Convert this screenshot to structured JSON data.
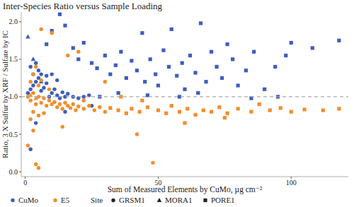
{
  "chart_data": {
    "type": "scatter",
    "title": "Inter-Species Ratio versus Sample Loading",
    "x_label": "Sum of Measured Elements by CuMo, µg cm⁻²",
    "y_label": "Ratio, 3 X Sulfur by XRF / Sulfate by IC",
    "xlim": [
      -1.5,
      121.5
    ],
    "ylim": [
      -0.065,
      2.13
    ],
    "xticks": [
      0,
      50,
      100
    ],
    "yticks": [
      {
        "value": 0,
        "label": "0.0"
      },
      {
        "value": 0.5,
        "label": "0.5"
      },
      {
        "value": 1,
        "label": "1.0"
      },
      {
        "value": 1.5,
        "label": "1.5"
      },
      {
        "value": 2,
        "label": "2.0"
      }
    ],
    "reference_line": 1,
    "grid": false,
    "legend": "bottom",
    "legend_title": "Site",
    "sites": [
      {
        "name": "GRSM1",
        "marker": "circle"
      },
      {
        "name": "MORA1",
        "marker": "triangle"
      },
      {
        "name": "PORE1",
        "marker": "square"
      }
    ],
    "series": [
      {
        "name": "CuMo",
        "color": "#3d5dbd",
        "marker": "circle",
        "x": [
          1,
          2,
          3,
          4,
          5,
          6,
          7,
          8,
          9,
          10,
          11,
          12,
          13,
          14,
          15,
          16,
          18,
          20,
          22,
          24,
          3,
          5,
          2,
          4,
          6,
          8,
          10,
          12,
          1,
          3,
          6,
          8,
          10,
          13,
          15,
          18,
          20,
          22,
          25,
          27,
          30,
          32,
          34,
          36,
          38,
          40,
          42,
          44,
          45,
          47,
          49,
          50,
          52,
          54,
          55,
          57,
          59,
          60,
          62,
          64,
          66,
          68,
          70,
          72,
          74,
          76,
          78,
          80,
          83,
          86,
          90,
          94,
          98,
          100,
          108,
          118,
          28,
          35,
          46,
          58,
          65,
          85,
          95,
          2,
          4,
          15,
          25
        ],
        "values": [
          1.05,
          1.1,
          1.15,
          1.2,
          1.25,
          1.08,
          1.12,
          1.18,
          1.0,
          1.05,
          1.1,
          1.02,
          0.98,
          1.06,
          1.0,
          1.04,
          1.0,
          0.98,
          1.0,
          1.02,
          1.3,
          1.35,
          1.4,
          1.45,
          1.3,
          1.28,
          1.3,
          1.22,
          1.8,
          1.5,
          1.2,
          1.7,
          1.88,
          2.1,
          1.95,
          1.65,
          1.5,
          1.72,
          1.45,
          1.38,
          1.55,
          1.3,
          1.42,
          1.6,
          1.25,
          1.48,
          1.35,
          1.85,
          1.2,
          1.5,
          1.3,
          1.15,
          1.62,
          1.4,
          1.9,
          1.28,
          1.45,
          1.1,
          1.55,
          1.32,
          1.98,
          1.2,
          1.6,
          1.4,
          1.25,
          1.7,
          1.5,
          1.15,
          1.35,
          1.6,
          1.1,
          1.4,
          1.55,
          1.72,
          1.65,
          1.75,
          1.0,
          1.05,
          1.02,
          1.0,
          1.05,
          0.98,
          1.0,
          0.3,
          0.65,
          0.8,
          0.88
        ],
        "site": [
          "GRSM1",
          "GRSM1",
          "GRSM1",
          "GRSM1",
          "GRSM1",
          "GRSM1",
          "GRSM1",
          "GRSM1",
          "GRSM1",
          "GRSM1",
          "GRSM1",
          "GRSM1",
          "GRSM1",
          "GRSM1",
          "GRSM1",
          "GRSM1",
          "GRSM1",
          "GRSM1",
          "GRSM1",
          "GRSM1",
          "GRSM1",
          "GRSM1",
          "GRSM1",
          "GRSM1",
          "GRSM1",
          "GRSM1",
          "GRSM1",
          "GRSM1",
          "MORA1",
          "MORA1",
          "MORA1",
          "PORE1",
          "PORE1",
          "PORE1",
          "PORE1",
          "PORE1",
          "PORE1",
          "PORE1",
          "PORE1",
          "PORE1",
          "PORE1",
          "PORE1",
          "PORE1",
          "PORE1",
          "PORE1",
          "PORE1",
          "PORE1",
          "PORE1",
          "PORE1",
          "PORE1",
          "PORE1",
          "PORE1",
          "PORE1",
          "PORE1",
          "PORE1",
          "PORE1",
          "PORE1",
          "PORE1",
          "PORE1",
          "PORE1",
          "PORE1",
          "PORE1",
          "PORE1",
          "PORE1",
          "PORE1",
          "PORE1",
          "PORE1",
          "PORE1",
          "PORE1",
          "PORE1",
          "PORE1",
          "PORE1",
          "PORE1",
          "PORE1",
          "PORE1",
          "PORE1",
          "PORE1",
          "PORE1",
          "PORE1",
          "PORE1",
          "PORE1",
          "PORE1",
          "PORE1",
          "GRSM1",
          "GRSM1",
          "GRSM1",
          "GRSM1"
        ]
      },
      {
        "name": "E5",
        "color": "#f28e2b",
        "marker": "circle",
        "x": [
          1,
          2,
          3,
          4,
          5,
          6,
          7,
          8,
          9,
          10,
          11,
          12,
          13,
          14,
          15,
          16,
          17,
          18,
          19,
          20,
          22,
          24,
          26,
          28,
          30,
          2,
          3,
          4,
          5,
          6,
          2,
          3,
          5,
          7,
          4,
          5,
          3,
          1,
          10,
          6,
          16,
          20,
          30,
          42,
          48,
          14,
          22,
          9,
          32,
          35,
          38,
          40,
          43,
          46,
          50,
          53,
          55,
          58,
          61,
          64,
          67,
          70,
          73,
          76,
          80,
          85,
          88,
          92,
          96,
          100,
          105,
          112,
          118,
          36,
          44,
          60,
          75,
          2,
          4
        ],
        "values": [
          1.0,
          0.95,
          1.05,
          0.9,
          1.0,
          0.92,
          0.98,
          0.88,
          0.95,
          0.9,
          0.93,
          0.86,
          0.9,
          0.84,
          0.92,
          0.88,
          0.85,
          0.9,
          0.82,
          0.87,
          0.84,
          0.88,
          0.82,
          0.86,
          0.8,
          1.2,
          1.3,
          1.4,
          1.15,
          1.22,
          0.7,
          0.8,
          0.75,
          0.78,
          0.1,
          0.05,
          0.55,
          0.35,
          1.85,
          1.9,
          1.55,
          1.6,
          1.2,
          0.5,
          0.12,
          0.6,
          0.95,
          1.1,
          0.85,
          0.82,
          0.78,
          0.84,
          0.8,
          0.86,
          0.82,
          0.78,
          0.88,
          0.8,
          0.84,
          0.76,
          0.82,
          0.8,
          0.86,
          0.78,
          0.84,
          0.8,
          0.9,
          0.82,
          0.85,
          0.8,
          0.83,
          0.82,
          0.84,
          1.0,
          0.95,
          0.65,
          0.72,
          1.02,
          0.98
        ],
        "site": [
          "GRSM1",
          "GRSM1",
          "GRSM1",
          "GRSM1",
          "GRSM1",
          "GRSM1",
          "GRSM1",
          "GRSM1",
          "GRSM1",
          "GRSM1",
          "GRSM1",
          "GRSM1",
          "GRSM1",
          "GRSM1",
          "GRSM1",
          "GRSM1",
          "GRSM1",
          "GRSM1",
          "GRSM1",
          "GRSM1",
          "GRSM1",
          "GRSM1",
          "GRSM1",
          "GRSM1",
          "GRSM1",
          "GRSM1",
          "GRSM1",
          "GRSM1",
          "GRSM1",
          "GRSM1",
          "GRSM1",
          "GRSM1",
          "GRSM1",
          "GRSM1",
          "GRSM1",
          "GRSM1",
          "GRSM1",
          "GRSM1",
          "GRSM1",
          "GRSM1",
          "GRSM1",
          "GRSM1",
          "GRSM1",
          "GRSM1",
          "GRSM1",
          "GRSM1",
          "GRSM1",
          "GRSM1",
          "PORE1",
          "PORE1",
          "PORE1",
          "PORE1",
          "PORE1",
          "PORE1",
          "PORE1",
          "PORE1",
          "PORE1",
          "PORE1",
          "PORE1",
          "PORE1",
          "PORE1",
          "PORE1",
          "PORE1",
          "PORE1",
          "PORE1",
          "PORE1",
          "PORE1",
          "PORE1",
          "PORE1",
          "PORE1",
          "PORE1",
          "PORE1",
          "PORE1",
          "PORE1",
          "PORE1",
          "PORE1",
          "PORE1",
          "MORA1",
          "MORA1"
        ]
      }
    ]
  }
}
